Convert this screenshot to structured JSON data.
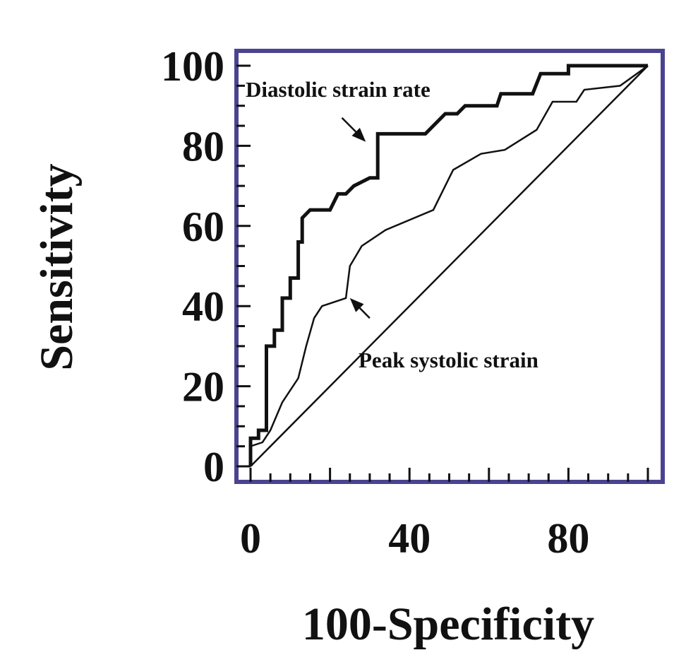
{
  "chart_data": {
    "type": "line",
    "title": "",
    "xlabel": "100-Specificity",
    "ylabel": "Sensitivity",
    "xlim": [
      0,
      100
    ],
    "ylim": [
      0,
      100
    ],
    "x_ticks": [
      0,
      40,
      80
    ],
    "y_ticks": [
      0,
      20,
      40,
      60,
      80,
      100
    ],
    "grid": false,
    "legend": "none",
    "colors": {
      "frame": "#4a4490",
      "series": "#111111"
    },
    "series": [
      {
        "name": "Diastolic strain rate",
        "line": "thick",
        "points": [
          [
            0,
            0
          ],
          [
            0,
            7
          ],
          [
            2,
            7
          ],
          [
            2,
            9
          ],
          [
            4,
            9
          ],
          [
            4,
            30
          ],
          [
            6,
            30
          ],
          [
            6,
            34
          ],
          [
            8,
            34
          ],
          [
            8,
            42
          ],
          [
            10,
            42
          ],
          [
            10,
            47
          ],
          [
            12,
            47
          ],
          [
            12,
            56
          ],
          [
            13,
            56
          ],
          [
            13,
            62
          ],
          [
            15,
            64
          ],
          [
            20,
            64
          ],
          [
            22,
            68
          ],
          [
            24,
            68
          ],
          [
            26,
            70
          ],
          [
            30,
            72
          ],
          [
            32,
            72
          ],
          [
            32,
            83
          ],
          [
            44,
            83
          ],
          [
            47,
            86
          ],
          [
            49,
            88
          ],
          [
            52,
            88
          ],
          [
            54,
            90
          ],
          [
            62,
            90
          ],
          [
            63,
            93
          ],
          [
            71,
            93
          ],
          [
            73,
            98
          ],
          [
            80,
            98
          ],
          [
            80,
            100
          ],
          [
            100,
            100
          ]
        ]
      },
      {
        "name": "Peak systolic strain",
        "line": "thin",
        "points": [
          [
            0,
            0
          ],
          [
            0,
            5
          ],
          [
            3,
            6
          ],
          [
            5,
            9
          ],
          [
            8,
            16
          ],
          [
            12,
            22
          ],
          [
            14,
            30
          ],
          [
            16,
            37
          ],
          [
            18,
            40
          ],
          [
            24,
            42
          ],
          [
            25,
            50
          ],
          [
            28,
            55
          ],
          [
            34,
            59
          ],
          [
            46,
            64
          ],
          [
            51,
            74
          ],
          [
            58,
            78
          ],
          [
            64,
            79
          ],
          [
            72,
            84
          ],
          [
            76,
            91
          ],
          [
            82,
            91
          ],
          [
            84,
            94
          ],
          [
            93,
            95
          ],
          [
            100,
            100
          ]
        ]
      },
      {
        "name": "",
        "line": "thin",
        "points": [
          [
            0,
            0
          ],
          [
            100,
            100
          ]
        ]
      }
    ],
    "annotations": [
      {
        "text": "Diastolic strain rate",
        "arrow_from": [
          23,
          87
        ],
        "arrow_to": [
          29,
          81
        ]
      },
      {
        "text": "Peak systolic strain",
        "arrow_from": [
          30,
          37
        ],
        "arrow_to": [
          25,
          42
        ]
      }
    ]
  }
}
